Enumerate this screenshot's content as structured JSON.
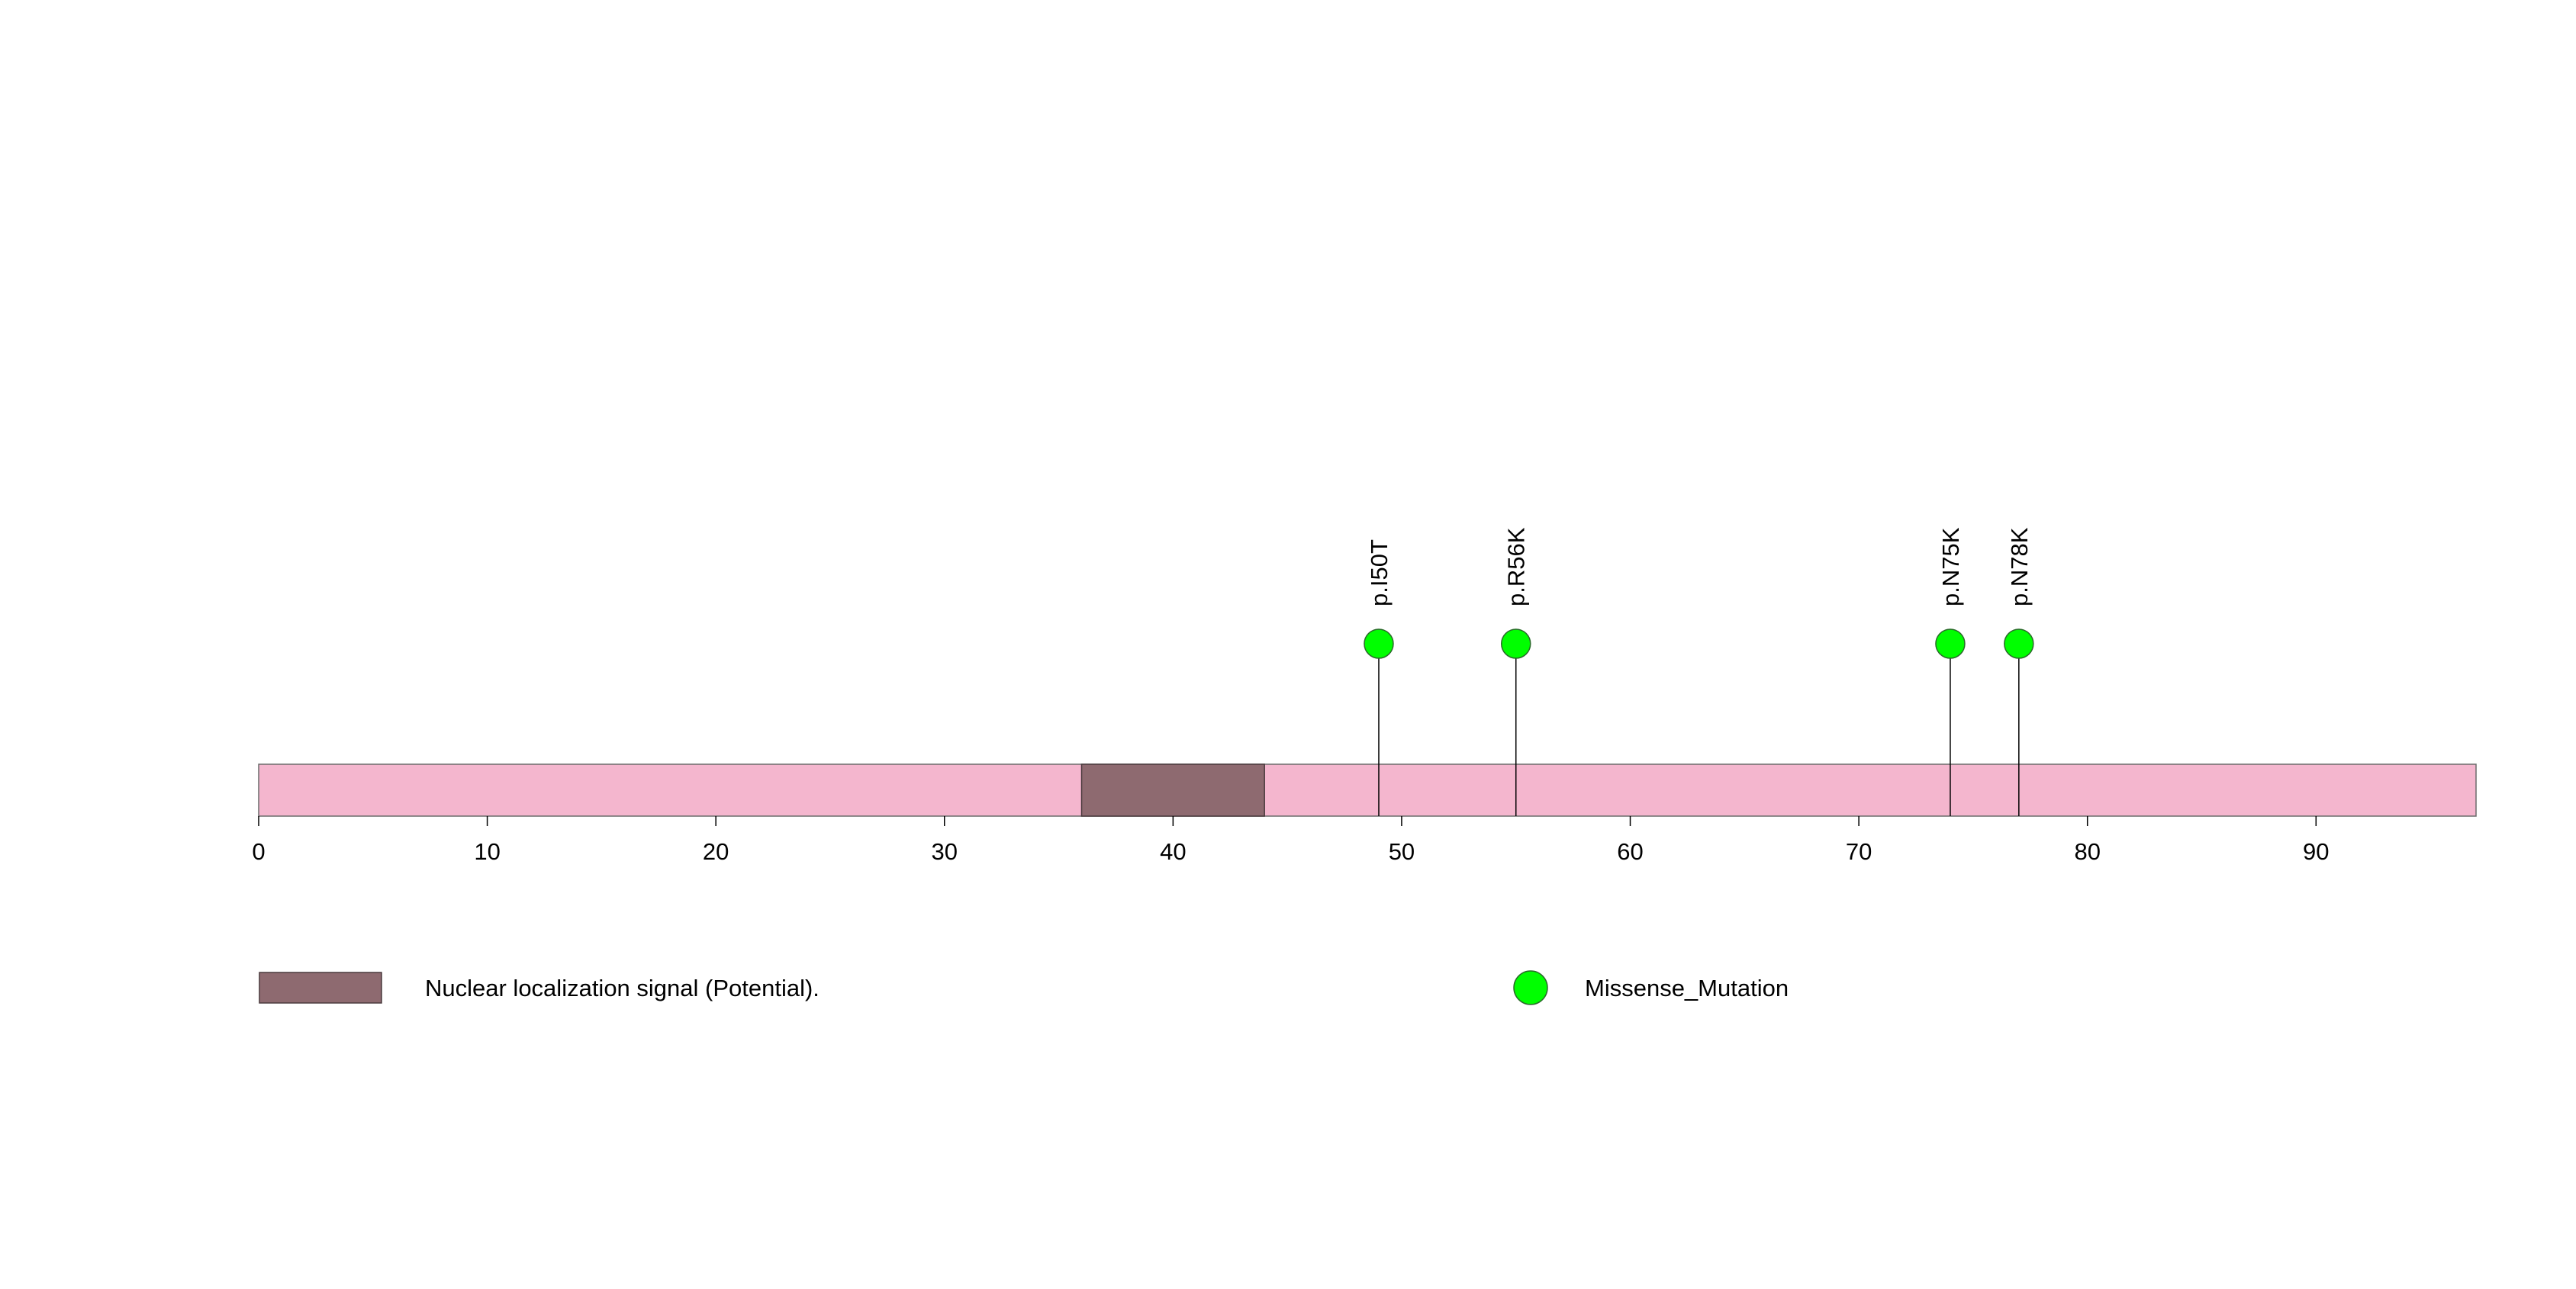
{
  "chart_data": {
    "type": "lollipop",
    "protein_length": 97,
    "x_axis": {
      "range": [
        0,
        97
      ],
      "ticks": [
        0,
        10,
        20,
        30,
        40,
        50,
        60,
        70,
        80,
        90
      ],
      "tick_labels": [
        "0",
        "10",
        "20",
        "30",
        "40",
        "50",
        "60",
        "70",
        "80",
        "90"
      ]
    },
    "backbone_color": "#F4B6CE",
    "domains": [
      {
        "name": "Nuclear localization signal (Potential).",
        "start": 36,
        "end": 44,
        "color": "#8E6A70"
      }
    ],
    "mutations": [
      {
        "label": "p.I50T",
        "position": 49,
        "count": 1,
        "type": "Missense_Mutation"
      },
      {
        "label": "p.R56K",
        "position": 55,
        "count": 1,
        "type": "Missense_Mutation"
      },
      {
        "label": "p.N75K",
        "position": 74,
        "count": 1,
        "type": "Missense_Mutation"
      },
      {
        "label": "p.N78K",
        "position": 77,
        "count": 1,
        "type": "Missense_Mutation"
      }
    ],
    "mutation_color": "#00FF00",
    "legend": [
      {
        "kind": "domain",
        "label": "Nuclear localization signal (Potential).",
        "color": "#8E6A70"
      },
      {
        "kind": "mutation",
        "label": "Missense_Mutation",
        "color": "#00FF00"
      }
    ]
  }
}
